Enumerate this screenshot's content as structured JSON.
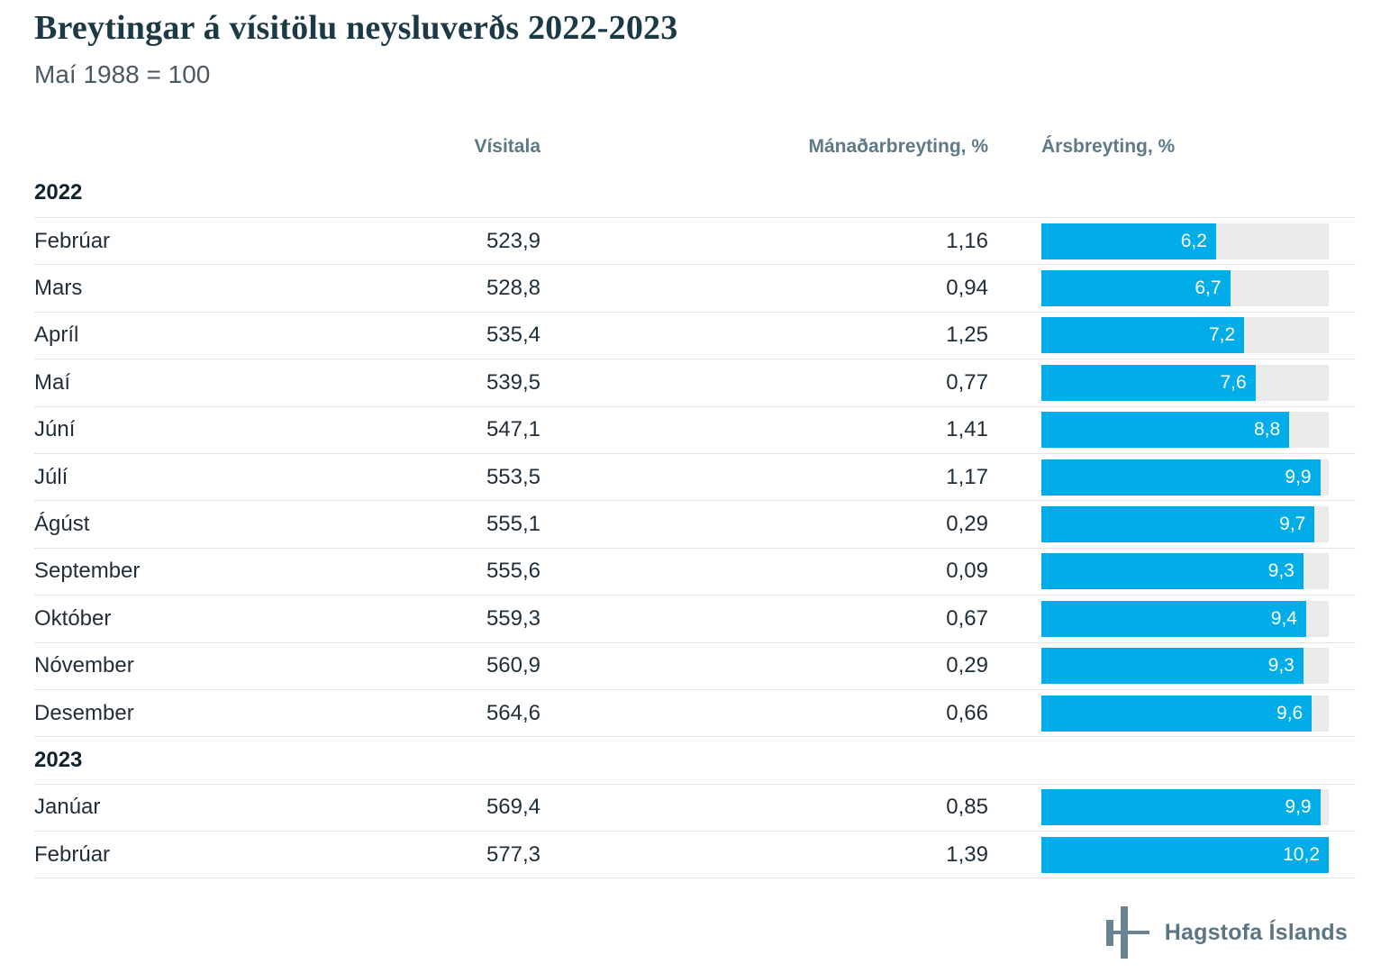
{
  "title": "Breytingar á vísitölu neysluverðs 2022-2023",
  "subtitle": "Maí 1988 = 100",
  "columns": {
    "visitala": "Vísitala",
    "manadarbreyting": "Mánaðarbreyting, %",
    "arsbreyting": "Ársbreyting, %"
  },
  "theme": {
    "accent": "#00ade9",
    "bar_track": "#ebebeb",
    "row_line": "#e4e4e4",
    "title_color": "#1c3946",
    "column_header_color": "#5c7a87",
    "text_color": "#1f2e38",
    "logo_color": "#6b8494"
  },
  "bar_scale_max": 10.2,
  "sections": [
    {
      "year": "2022",
      "rows": [
        {
          "month": "Febrúar",
          "visitala": "523,9",
          "manadarbreyting": "1,16",
          "arsbreyting_label": "6,2",
          "arsbreyting": 6.2
        },
        {
          "month": "Mars",
          "visitala": "528,8",
          "manadarbreyting": "0,94",
          "arsbreyting_label": "6,7",
          "arsbreyting": 6.7
        },
        {
          "month": "Apríl",
          "visitala": "535,4",
          "manadarbreyting": "1,25",
          "arsbreyting_label": "7,2",
          "arsbreyting": 7.2
        },
        {
          "month": "Maí",
          "visitala": "539,5",
          "manadarbreyting": "0,77",
          "arsbreyting_label": "7,6",
          "arsbreyting": 7.6
        },
        {
          "month": "Júní",
          "visitala": "547,1",
          "manadarbreyting": "1,41",
          "arsbreyting_label": "8,8",
          "arsbreyting": 8.8
        },
        {
          "month": "Júlí",
          "visitala": "553,5",
          "manadarbreyting": "1,17",
          "arsbreyting_label": "9,9",
          "arsbreyting": 9.9
        },
        {
          "month": "Ágúst",
          "visitala": "555,1",
          "manadarbreyting": "0,29",
          "arsbreyting_label": "9,7",
          "arsbreyting": 9.7
        },
        {
          "month": "September",
          "visitala": "555,6",
          "manadarbreyting": "0,09",
          "arsbreyting_label": "9,3",
          "arsbreyting": 9.3
        },
        {
          "month": "Október",
          "visitala": "559,3",
          "manadarbreyting": "0,67",
          "arsbreyting_label": "9,4",
          "arsbreyting": 9.4
        },
        {
          "month": "Nóvember",
          "visitala": "560,9",
          "manadarbreyting": "0,29",
          "arsbreyting_label": "9,3",
          "arsbreyting": 9.3
        },
        {
          "month": "Desember",
          "visitala": "564,6",
          "manadarbreyting": "0,66",
          "arsbreyting_label": "9,6",
          "arsbreyting": 9.6
        }
      ]
    },
    {
      "year": "2023",
      "rows": [
        {
          "month": "Janúar",
          "visitala": "569,4",
          "manadarbreyting": "0,85",
          "arsbreyting_label": "9,9",
          "arsbreyting": 9.9
        },
        {
          "month": "Febrúar",
          "visitala": "577,3",
          "manadarbreyting": "1,39",
          "arsbreyting_label": "10,2",
          "arsbreyting": 10.2
        }
      ]
    }
  ],
  "footer": {
    "logo_text": "Hagstofa Íslands"
  },
  "chart_data": {
    "type": "bar",
    "title": "Breytingar á vísitölu neysluverðs 2022-2023",
    "subtitle": "Maí 1988 = 100",
    "orientation": "horizontal",
    "categories": [
      "2022 Febrúar",
      "2022 Mars",
      "2022 Apríl",
      "2022 Maí",
      "2022 Júní",
      "2022 Júlí",
      "2022 Ágúst",
      "2022 September",
      "2022 Október",
      "2022 Nóvember",
      "2022 Desember",
      "2023 Janúar",
      "2023 Febrúar"
    ],
    "series": [
      {
        "name": "Vísitala",
        "values": [
          523.9,
          528.8,
          535.4,
          539.5,
          547.1,
          553.5,
          555.1,
          555.6,
          559.3,
          560.9,
          564.6,
          569.4,
          577.3
        ]
      },
      {
        "name": "Mánaðarbreyting, %",
        "values": [
          1.16,
          0.94,
          1.25,
          0.77,
          1.41,
          1.17,
          0.29,
          0.09,
          0.67,
          0.29,
          0.66,
          0.85,
          1.39
        ]
      },
      {
        "name": "Ársbreyting, %",
        "values": [
          6.2,
          6.7,
          7.2,
          7.6,
          8.8,
          9.9,
          9.7,
          9.3,
          9.4,
          9.3,
          9.6,
          9.9,
          10.2
        ]
      }
    ],
    "bar_series_plotted": "Ársbreyting, %",
    "xlim": [
      0,
      10.2
    ],
    "grid": false,
    "legend_position": "none",
    "data_labels": true
  }
}
